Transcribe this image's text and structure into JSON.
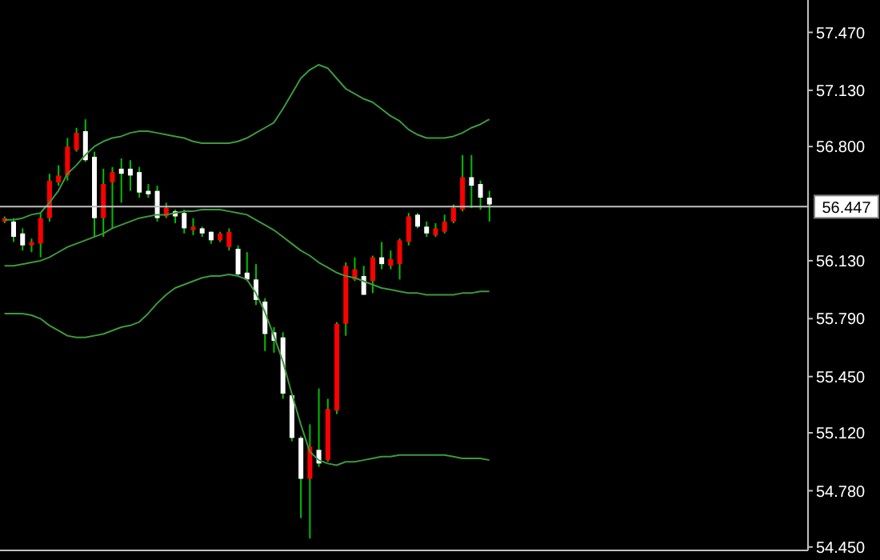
{
  "chart_data": {
    "type": "candlestick",
    "categories": [
      null,
      null,
      null,
      null,
      null,
      null,
      null,
      null,
      null,
      null,
      null,
      null,
      null,
      null,
      null,
      null,
      null,
      null,
      null,
      null,
      null,
      null,
      null,
      null,
      null,
      null,
      null,
      null,
      null,
      null,
      null,
      null,
      null,
      null,
      null,
      null,
      null,
      null,
      null,
      null,
      null,
      null,
      null,
      null,
      null,
      null,
      null,
      null,
      null,
      null,
      null,
      null,
      null,
      null,
      null,
      null,
      null,
      null,
      null,
      null,
      null,
      null,
      null,
      null,
      null,
      null,
      null,
      null,
      null,
      null,
      null,
      null,
      null,
      null,
      null,
      null,
      null,
      null,
      null,
      null,
      null,
      null,
      null,
      null,
      null,
      null,
      null,
      null,
      null,
      null
    ],
    "ohlc": [
      [
        56.36,
        56.39,
        56.35,
        56.38
      ],
      [
        56.36,
        56.38,
        56.24,
        56.27
      ],
      [
        56.29,
        56.32,
        56.19,
        56.22
      ],
      [
        56.22,
        56.26,
        56.18,
        56.24
      ],
      [
        56.23,
        56.41,
        56.15,
        56.38
      ],
      [
        56.38,
        56.64,
        56.36,
        56.6
      ],
      [
        56.59,
        56.69,
        56.57,
        56.63
      ],
      [
        56.63,
        56.85,
        56.6,
        56.8
      ],
      [
        56.78,
        56.91,
        56.77,
        56.88
      ],
      [
        56.89,
        56.96,
        56.71,
        56.72
      ],
      [
        56.74,
        56.77,
        56.27,
        56.38
      ],
      [
        56.38,
        56.67,
        56.27,
        56.58
      ],
      [
        56.59,
        56.68,
        56.32,
        56.65
      ],
      [
        56.67,
        56.73,
        56.47,
        56.64
      ],
      [
        56.67,
        56.72,
        56.54,
        56.63
      ],
      [
        56.65,
        56.68,
        56.5,
        56.53
      ],
      [
        56.54,
        56.58,
        56.5,
        56.52
      ],
      [
        56.54,
        56.57,
        56.36,
        56.38
      ],
      [
        56.39,
        56.47,
        56.38,
        56.44
      ],
      [
        56.42,
        56.43,
        56.35,
        56.39
      ],
      [
        56.41,
        56.43,
        56.29,
        56.32
      ],
      [
        56.31,
        56.38,
        56.28,
        56.33
      ],
      [
        56.32,
        56.33,
        56.27,
        56.29
      ],
      [
        56.3,
        56.3,
        56.23,
        56.25
      ],
      [
        56.25,
        56.3,
        56.24,
        56.29
      ],
      [
        56.21,
        56.32,
        56.19,
        56.3
      ],
      [
        56.2,
        56.22,
        56.04,
        56.05
      ],
      [
        56.06,
        56.18,
        56.01,
        56.02
      ],
      [
        56.02,
        56.11,
        55.87,
        55.9
      ],
      [
        55.89,
        55.91,
        55.6,
        55.7
      ],
      [
        55.71,
        55.74,
        55.59,
        55.66
      ],
      [
        55.68,
        55.71,
        55.32,
        55.35
      ],
      [
        55.34,
        55.35,
        55.07,
        55.09
      ],
      [
        55.09,
        55.1,
        54.62,
        54.85
      ],
      [
        54.85,
        55.17,
        54.5,
        55.04
      ],
      [
        55.02,
        55.38,
        54.92,
        54.94
      ],
      [
        54.96,
        55.32,
        54.95,
        55.26
      ],
      [
        55.25,
        55.77,
        55.23,
        55.76
      ],
      [
        55.76,
        56.12,
        55.69,
        56.1
      ],
      [
        56.02,
        56.15,
        56.01,
        56.08
      ],
      [
        56.04,
        56.1,
        55.93,
        55.93
      ],
      [
        56.01,
        56.16,
        55.94,
        56.15
      ],
      [
        56.15,
        56.24,
        56.08,
        56.11
      ],
      [
        56.1,
        56.19,
        56.08,
        56.14
      ],
      [
        56.11,
        56.26,
        56.02,
        56.25
      ],
      [
        56.24,
        56.41,
        56.22,
        56.39
      ],
      [
        56.4,
        56.41,
        56.32,
        56.33
      ],
      [
        56.33,
        56.36,
        56.27,
        56.29
      ],
      [
        56.28,
        56.35,
        56.27,
        56.32
      ],
      [
        56.3,
        56.4,
        56.29,
        56.36
      ],
      [
        56.36,
        56.46,
        56.35,
        56.44
      ],
      [
        56.43,
        56.75,
        56.42,
        56.62
      ],
      [
        56.62,
        56.75,
        56.44,
        56.57
      ],
      [
        56.58,
        56.6,
        56.43,
        56.5
      ],
      [
        56.5,
        56.54,
        56.36,
        56.46
      ],
      null,
      null,
      null,
      null,
      null,
      null,
      null,
      null,
      null,
      null,
      null,
      null,
      null,
      null,
      null,
      null,
      null,
      null,
      null,
      null,
      null,
      null,
      null,
      null,
      null,
      null,
      null,
      null,
      null,
      null,
      null,
      null,
      null,
      null,
      null
    ],
    "colors": [
      "#ff0000",
      "#ffffff",
      "#ffffff",
      "#ff0000",
      "#ff0000",
      "#ff0000",
      "#ff0000",
      "#ff0000",
      "#ff0000",
      "#ffffff",
      "#ffffff",
      "#ff0000",
      "#ff0000",
      "#ffffff",
      "#ffffff",
      "#ffffff",
      "#ffffff",
      "#ffffff",
      "#ff0000",
      "#ffffff",
      "#ffffff",
      "#ff0000",
      "#ffffff",
      "#ffffff",
      "#ff0000",
      "#ff0000",
      "#ffffff",
      "#ffffff",
      "#ffffff",
      "#ffffff",
      "#ffffff",
      "#ffffff",
      "#ffffff",
      "#ffffff",
      "#ff0000",
      "#ffffff",
      "#ff0000",
      "#ff0000",
      "#ff0000",
      "#ff0000",
      "#ffffff",
      "#ff0000",
      "#ffffff",
      "#ff0000",
      "#ff0000",
      "#ff0000",
      "#ffffff",
      "#ffffff",
      "#ff0000",
      "#ff0000",
      "#ff0000",
      "#ff0000",
      "#ffffff",
      "#ffffff",
      "#ffffff",
      null,
      null,
      null,
      null,
      null,
      null,
      null,
      null,
      null,
      null,
      null,
      null,
      null,
      null,
      null,
      null,
      null,
      null,
      null,
      null,
      null,
      null,
      null,
      null,
      null,
      null,
      null,
      null,
      null,
      null,
      null,
      null,
      null,
      null,
      null
    ],
    "color": "#00c000",
    "series": [
      {
        "type": "line",
        "color": "#3c9a3c",
        "values": [
          56.37,
          56.37,
          56.38,
          56.4,
          56.41,
          56.47,
          56.54,
          56.64,
          56.69,
          56.75,
          56.8,
          56.83,
          56.85,
          56.86,
          56.88,
          56.89,
          56.89,
          56.88,
          56.87,
          56.86,
          56.85,
          56.83,
          56.82,
          56.82,
          56.82,
          56.82,
          56.83,
          56.85,
          56.88,
          56.91,
          56.94,
          57.02,
          57.11,
          57.2,
          57.25,
          57.28,
          57.26,
          57.2,
          57.14,
          57.11,
          57.08,
          57.06,
          57.02,
          56.98,
          56.95,
          56.9,
          56.87,
          56.85,
          56.85,
          56.85,
          56.86,
          56.88,
          56.91,
          56.93,
          56.96,
          null,
          null,
          null,
          null,
          null,
          null,
          null,
          null,
          null,
          null,
          null,
          null,
          null,
          null,
          null,
          null,
          null,
          null,
          null,
          null,
          null,
          null,
          null,
          null,
          null,
          null,
          null,
          null,
          null,
          null,
          null,
          null,
          null,
          null,
          null
        ]
      },
      {
        "type": "line",
        "color": "#3c9a3c",
        "values": [
          56.1,
          56.1,
          56.11,
          56.12,
          56.13,
          56.15,
          56.18,
          56.21,
          56.23,
          56.25,
          56.27,
          56.29,
          56.32,
          56.34,
          56.36,
          56.38,
          56.39,
          56.4,
          56.4,
          56.41,
          56.42,
          56.42,
          56.43,
          56.43,
          56.43,
          56.42,
          56.41,
          56.4,
          56.37,
          56.34,
          56.31,
          56.27,
          56.23,
          56.19,
          56.16,
          56.12,
          56.09,
          56.06,
          56.04,
          56.03,
          56.01,
          55.99,
          55.97,
          55.96,
          55.95,
          55.94,
          55.94,
          55.93,
          55.93,
          55.93,
          55.93,
          55.94,
          55.94,
          55.95,
          55.95,
          null,
          null,
          null,
          null,
          null,
          null,
          null,
          null,
          null,
          null,
          null,
          null,
          null,
          null,
          null,
          null,
          null,
          null,
          null,
          null,
          null,
          null,
          null,
          null,
          null,
          null,
          null,
          null,
          null,
          null,
          null,
          null,
          null,
          null,
          null
        ]
      },
      {
        "type": "line",
        "color": "#3c9a3c",
        "values": [
          55.82,
          55.82,
          55.82,
          55.81,
          55.79,
          55.75,
          55.72,
          55.69,
          55.68,
          55.68,
          55.69,
          55.7,
          55.72,
          55.74,
          55.75,
          55.77,
          55.82,
          55.88,
          55.93,
          55.97,
          55.99,
          56.01,
          56.03,
          56.04,
          56.04,
          56.05,
          56.04,
          56.02,
          55.94,
          55.83,
          55.69,
          55.54,
          55.35,
          55.17,
          55.01,
          54.96,
          54.94,
          54.93,
          54.95,
          54.95,
          54.96,
          54.97,
          54.98,
          54.98,
          54.99,
          54.99,
          54.99,
          54.99,
          54.99,
          54.99,
          54.98,
          54.97,
          54.97,
          54.97,
          54.96,
          null,
          null,
          null,
          null,
          null,
          null,
          null,
          null,
          null,
          null,
          null,
          null,
          null,
          null,
          null,
          null,
          null,
          null,
          null,
          null,
          null,
          null,
          null,
          null,
          null,
          null,
          null,
          null,
          null,
          null,
          null,
          null,
          null,
          null,
          null
        ]
      }
    ],
    "ylim": [
      54.43,
      57.66
    ],
    "yticks": [
      {
        "value": 54.45,
        "label": "54.450"
      },
      {
        "value": 54.78,
        "label": "54.780"
      },
      {
        "value": 55.12,
        "label": "55.120"
      },
      {
        "value": 55.45,
        "label": "55.450"
      },
      {
        "value": 55.79,
        "label": "55.790"
      },
      {
        "value": 56.13,
        "label": "56.130"
      },
      {
        "value": 56.8,
        "label": "56.800"
      },
      {
        "value": 57.13,
        "label": "57.130"
      },
      {
        "value": 57.47,
        "label": "57.470"
      }
    ],
    "ref_lines": [
      {
        "axis": "y",
        "value": 56.447,
        "label": "56.447",
        "color": "#c0c0c0"
      }
    ],
    "grid": false,
    "tick_labels": "y",
    "marker": "none"
  }
}
